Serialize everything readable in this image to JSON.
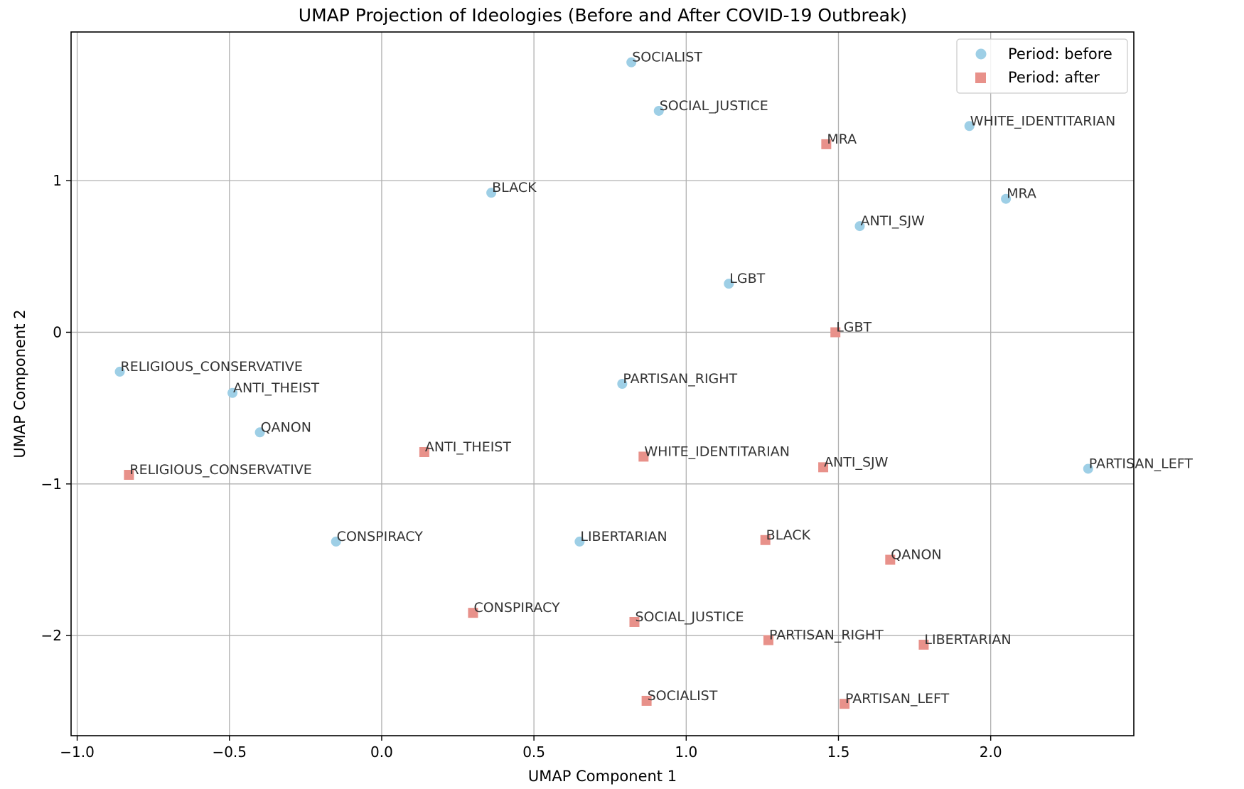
{
  "chart_data": {
    "type": "scatter",
    "title": "UMAP Projection of Ideologies (Before and After COVID-19 Outbreak)",
    "xlabel": "UMAP Component 1",
    "ylabel": "UMAP Component 2",
    "xlim": [
      -1.02,
      2.47
    ],
    "ylim": [
      -2.66,
      1.98
    ],
    "xticks": [
      -1.0,
      -0.5,
      0.0,
      0.5,
      1.0,
      1.5,
      2.0
    ],
    "xtick_labels": [
      "−1.0",
      "−0.5",
      "0.0",
      "0.5",
      "1.0",
      "1.5",
      "2.0"
    ],
    "yticks": [
      -2,
      -1,
      0,
      1
    ],
    "ytick_labels": [
      "−2",
      "−1",
      "0",
      "1"
    ],
    "grid": true,
    "legend_position": "top-right",
    "colors": {
      "before": "#9ecfe6",
      "after": "#e8918a"
    },
    "series": [
      {
        "name": "Period: before",
        "marker": "circle",
        "points": [
          {
            "label": "SOCIALIST",
            "x": 0.82,
            "y": 1.78
          },
          {
            "label": "SOCIAL_JUSTICE",
            "x": 0.91,
            "y": 1.46
          },
          {
            "label": "WHITE_IDENTITARIAN",
            "x": 1.93,
            "y": 1.36
          },
          {
            "label": "BLACK",
            "x": 0.36,
            "y": 0.92
          },
          {
            "label": "MRA",
            "x": 2.05,
            "y": 0.88
          },
          {
            "label": "ANTI_SJW",
            "x": 1.57,
            "y": 0.7
          },
          {
            "label": "LGBT",
            "x": 1.14,
            "y": 0.32
          },
          {
            "label": "RELIGIOUS_CONSERVATIVE",
            "x": -0.86,
            "y": -0.26
          },
          {
            "label": "PARTISAN_RIGHT",
            "x": 0.79,
            "y": -0.34
          },
          {
            "label": "ANTI_THEIST",
            "x": -0.49,
            "y": -0.4
          },
          {
            "label": "QANON",
            "x": -0.4,
            "y": -0.66
          },
          {
            "label": "PARTISAN_LEFT",
            "x": 2.32,
            "y": -0.9
          },
          {
            "label": "CONSPIRACY",
            "x": -0.15,
            "y": -1.38
          },
          {
            "label": "LIBERTARIAN",
            "x": 0.65,
            "y": -1.38
          }
        ]
      },
      {
        "name": "Period: after",
        "marker": "square",
        "points": [
          {
            "label": "MRA",
            "x": 1.46,
            "y": 1.24
          },
          {
            "label": "LGBT",
            "x": 1.49,
            "y": 0.0
          },
          {
            "label": "ANTI_THEIST",
            "x": 0.14,
            "y": -0.79
          },
          {
            "label": "WHITE_IDENTITARIAN",
            "x": 0.86,
            "y": -0.82
          },
          {
            "label": "ANTI_SJW",
            "x": 1.45,
            "y": -0.89
          },
          {
            "label": "RELIGIOUS_CONSERVATIVE",
            "x": -0.83,
            "y": -0.94
          },
          {
            "label": "BLACK",
            "x": 1.26,
            "y": -1.37
          },
          {
            "label": "QANON",
            "x": 1.67,
            "y": -1.5
          },
          {
            "label": "CONSPIRACY",
            "x": 0.3,
            "y": -1.85
          },
          {
            "label": "SOCIAL_JUSTICE",
            "x": 0.83,
            "y": -1.91
          },
          {
            "label": "PARTISAN_RIGHT",
            "x": 1.27,
            "y": -2.03
          },
          {
            "label": "LIBERTARIAN",
            "x": 1.78,
            "y": -2.06
          },
          {
            "label": "SOCIALIST",
            "x": 0.87,
            "y": -2.43
          },
          {
            "label": "PARTISAN_LEFT",
            "x": 1.52,
            "y": -2.45
          }
        ]
      }
    ]
  }
}
